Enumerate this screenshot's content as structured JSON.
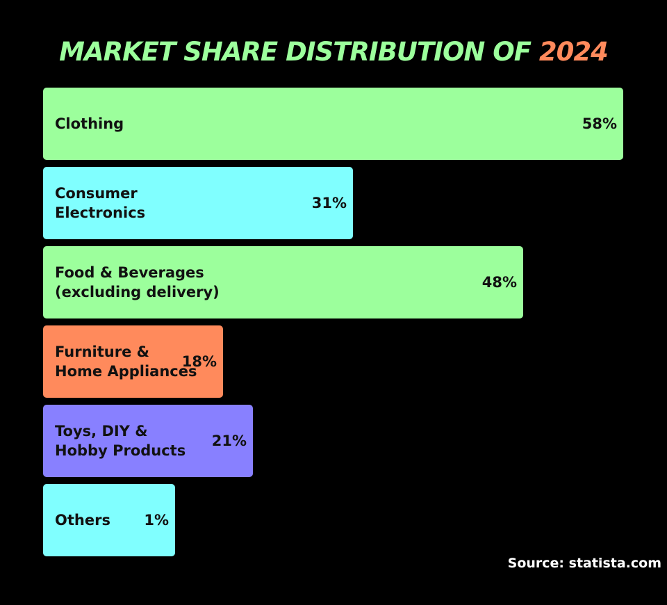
{
  "chart_data": {
    "type": "bar",
    "orientation": "horizontal",
    "title": "MARKET SHARE DISTRIBUTION OF 2024",
    "title_parts": {
      "main": "MARKET SHARE DISTRIBUTION OF ",
      "highlight": "2024"
    },
    "categories": [
      "Clothing",
      "Consumer\nElectronics",
      "Food & Beverages\n(excluding delivery)",
      "Furniture &\nHome Appliances",
      "Toys, DIY &\nHobby Products",
      "Others"
    ],
    "values": [
      58,
      31,
      48,
      18,
      21,
      1
    ],
    "value_labels": [
      "58%",
      "31%",
      "48%",
      "18%",
      "21%",
      "1%"
    ],
    "unit": "%",
    "xlim": [
      0,
      58
    ],
    "grid": false,
    "legend": "none"
  },
  "source": "Source: statista.com",
  "colors": {
    "background": "#000000",
    "title_main": "#9cff9c",
    "title_highlight": "#ff8a5c",
    "bar_colors": [
      "#9cff9c",
      "#80ffff",
      "#9cff9c",
      "#ff8a5c",
      "#8880ff",
      "#80ffff"
    ],
    "bar_text": "#111111",
    "source_text": "#ffffff"
  }
}
